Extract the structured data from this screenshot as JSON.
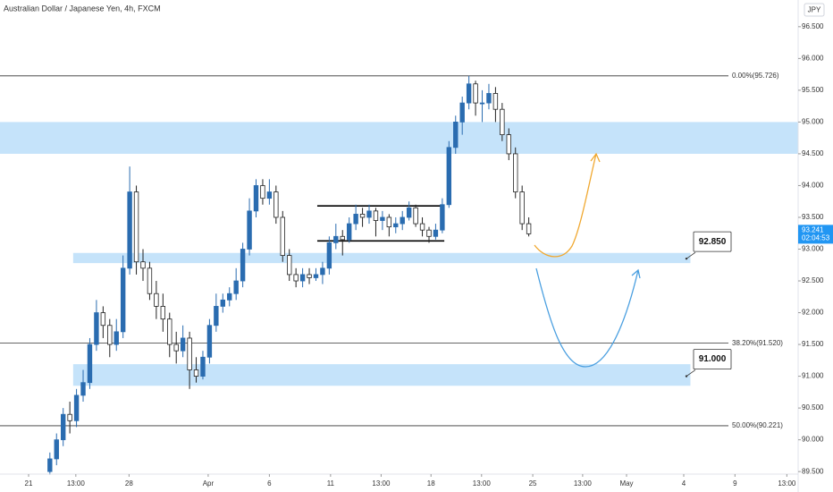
{
  "chart_data": {
    "type": "candlestick",
    "title": "Australian Dollar / Japanese Yen, 4h, FXCM",
    "currency": "JPY",
    "xlim": [
      0,
      120
    ],
    "ylim": [
      89.46,
      96.92
    ],
    "xticks": [
      {
        "value": 4.3,
        "label": "21"
      },
      {
        "value": 11.4,
        "label": "13:00"
      },
      {
        "value": 19.4,
        "label": "28"
      },
      {
        "value": 31.3,
        "label": "Apr"
      },
      {
        "value": 40.5,
        "label": "6"
      },
      {
        "value": 49.7,
        "label": "11"
      },
      {
        "value": 57.3,
        "label": "13:00"
      },
      {
        "value": 64.8,
        "label": "18"
      },
      {
        "value": 72.4,
        "label": "13:00"
      },
      {
        "value": 80.1,
        "label": "25"
      },
      {
        "value": 87.6,
        "label": "13:00"
      },
      {
        "value": 94.2,
        "label": "May"
      },
      {
        "value": 102.8,
        "label": "4"
      },
      {
        "value": 110.5,
        "label": "9"
      },
      {
        "value": 118.3,
        "label": "13:00"
      }
    ],
    "yticks": [
      {
        "value": 96.5,
        "label": "96.500"
      },
      {
        "value": 96.0,
        "label": "96.000"
      },
      {
        "value": 95.5,
        "label": "95.500"
      },
      {
        "value": 95.0,
        "label": "95.000"
      },
      {
        "value": 94.5,
        "label": "94.500"
      },
      {
        "value": 94.0,
        "label": "94.000"
      },
      {
        "value": 93.5,
        "label": "93.500"
      },
      {
        "value": 93.0,
        "label": "93.000"
      },
      {
        "value": 92.5,
        "label": "92.500"
      },
      {
        "value": 92.0,
        "label": "92.000"
      },
      {
        "value": 91.5,
        "label": "91.500"
      },
      {
        "value": 91.0,
        "label": "91.000"
      },
      {
        "value": 90.5,
        "label": "90.500"
      },
      {
        "value": 90.0,
        "label": "90.000"
      },
      {
        "value": 89.5,
        "label": "89.500"
      }
    ],
    "up_color": "#2a6cb0",
    "down_color": "#ffffff",
    "zone_color": "#c5e3fa",
    "x": [
      7.5,
      8.5,
      9.5,
      10.5,
      11.5,
      12.5,
      13.5,
      14.5,
      15.5,
      16.5,
      17.5,
      18.5,
      19.5,
      20.5,
      21.5,
      22.5,
      23.5,
      24.5,
      25.5,
      26.5,
      27.5,
      28.5,
      29.5,
      30.5,
      31.5,
      32.5,
      33.5,
      34.5,
      35.5,
      36.5,
      37.5,
      38.5,
      39.5,
      40.5,
      41.5,
      42.5,
      43.5,
      44.5,
      45.5,
      46.5,
      47.5,
      48.5,
      49.5,
      50.5,
      51.5,
      52.5,
      53.5,
      54.5,
      55.5,
      56.5,
      57.5,
      58.5,
      59.5,
      60.5,
      61.5,
      62.5,
      63.5,
      64.5,
      65.5,
      66.5,
      67.5,
      68.5,
      69.5,
      70.5,
      71.5,
      72.5,
      73.5,
      74.5,
      75.5,
      76.5,
      77.5,
      78.5,
      79.5
    ],
    "ohlc": [
      [
        89.5,
        89.8,
        89.45,
        89.7
      ],
      [
        89.7,
        90.1,
        89.6,
        90.0
      ],
      [
        90.0,
        90.5,
        89.9,
        90.4
      ],
      [
        90.4,
        90.6,
        90.1,
        90.3
      ],
      [
        90.3,
        90.8,
        90.2,
        90.7
      ],
      [
        90.7,
        91.1,
        90.6,
        90.9
      ],
      [
        90.9,
        91.6,
        90.8,
        91.5
      ],
      [
        91.5,
        92.2,
        91.4,
        92.0
      ],
      [
        92.0,
        92.1,
        91.6,
        91.8
      ],
      [
        91.8,
        91.9,
        91.3,
        91.5
      ],
      [
        91.5,
        91.9,
        91.4,
        91.7
      ],
      [
        91.7,
        92.9,
        91.6,
        92.7
      ],
      [
        92.7,
        94.3,
        92.6,
        93.9
      ],
      [
        93.9,
        94.0,
        92.6,
        92.8
      ],
      [
        92.8,
        93.0,
        92.5,
        92.7
      ],
      [
        92.7,
        92.8,
        92.2,
        92.3
      ],
      [
        92.3,
        92.5,
        91.9,
        92.1
      ],
      [
        92.1,
        92.3,
        91.7,
        91.9
      ],
      [
        91.9,
        92.0,
        91.3,
        91.5
      ],
      [
        91.5,
        91.7,
        91.2,
        91.4
      ],
      [
        91.4,
        91.8,
        91.3,
        91.6
      ],
      [
        91.6,
        91.7,
        90.8,
        91.1
      ],
      [
        91.1,
        91.3,
        90.9,
        91.0
      ],
      [
        91.0,
        91.4,
        90.95,
        91.3
      ],
      [
        91.3,
        91.9,
        91.2,
        91.8
      ],
      [
        91.8,
        92.3,
        91.7,
        92.1
      ],
      [
        92.1,
        92.3,
        92.0,
        92.2
      ],
      [
        92.2,
        92.4,
        92.1,
        92.3
      ],
      [
        92.3,
        92.7,
        92.2,
        92.5
      ],
      [
        92.5,
        93.1,
        92.4,
        93.0
      ],
      [
        93.0,
        93.8,
        92.9,
        93.6
      ],
      [
        93.6,
        94.1,
        93.5,
        94.0
      ],
      [
        94.0,
        94.1,
        93.7,
        93.8
      ],
      [
        93.8,
        94.1,
        93.7,
        93.9
      ],
      [
        93.9,
        94.0,
        93.4,
        93.5
      ],
      [
        93.5,
        93.6,
        92.8,
        92.9
      ],
      [
        92.9,
        93.0,
        92.5,
        92.6
      ],
      [
        92.6,
        92.7,
        92.4,
        92.5
      ],
      [
        92.5,
        92.7,
        92.4,
        92.6
      ],
      [
        92.6,
        92.7,
        92.45,
        92.55
      ],
      [
        92.55,
        92.7,
        92.5,
        92.6
      ],
      [
        92.6,
        92.8,
        92.45,
        92.7
      ],
      [
        92.7,
        93.2,
        92.6,
        93.1
      ],
      [
        93.1,
        93.4,
        93.0,
        93.2
      ],
      [
        93.2,
        93.3,
        92.9,
        93.15
      ],
      [
        93.15,
        93.5,
        93.1,
        93.4
      ],
      [
        93.4,
        93.7,
        93.3,
        93.55
      ],
      [
        93.55,
        93.65,
        93.35,
        93.5
      ],
      [
        93.5,
        93.7,
        93.4,
        93.6
      ],
      [
        93.6,
        93.65,
        93.2,
        93.45
      ],
      [
        93.45,
        93.6,
        93.3,
        93.5
      ],
      [
        93.5,
        93.55,
        93.2,
        93.35
      ],
      [
        93.35,
        93.5,
        93.25,
        93.4
      ],
      [
        93.4,
        93.6,
        93.3,
        93.5
      ],
      [
        93.5,
        93.75,
        93.45,
        93.65
      ],
      [
        93.65,
        93.7,
        93.35,
        93.4
      ],
      [
        93.4,
        93.5,
        93.2,
        93.3
      ],
      [
        93.3,
        93.35,
        93.1,
        93.2
      ],
      [
        93.2,
        93.4,
        93.15,
        93.3
      ],
      [
        93.3,
        93.8,
        93.25,
        93.7
      ],
      [
        93.7,
        94.7,
        93.65,
        94.6
      ],
      [
        94.6,
        95.1,
        94.5,
        95.0
      ],
      [
        95.0,
        95.4,
        94.8,
        95.3
      ],
      [
        95.3,
        95.726,
        95.2,
        95.6
      ],
      [
        95.6,
        95.65,
        95.1,
        95.3
      ],
      [
        95.3,
        95.5,
        95.0,
        95.3
      ],
      [
        95.3,
        95.6,
        95.2,
        95.45
      ],
      [
        95.45,
        95.55,
        95.0,
        95.2
      ],
      [
        95.2,
        95.3,
        94.7,
        94.8
      ],
      [
        94.8,
        94.9,
        94.4,
        94.5
      ],
      [
        94.5,
        94.6,
        93.8,
        93.9
      ],
      [
        93.9,
        94.0,
        93.3,
        93.4
      ],
      [
        93.4,
        93.5,
        93.2,
        93.241
      ]
    ],
    "levels": [
      {
        "value": 95.726,
        "label": "0.00%(95.726)"
      },
      {
        "value": 91.52,
        "label": "38.20%(91.520)"
      },
      {
        "value": 90.221,
        "label": "50.00%(90.221)"
      }
    ],
    "zones": [
      {
        "from": 94.5,
        "to": 95.0,
        "x": [
          0,
          120
        ]
      },
      {
        "from": 92.78,
        "to": 92.94,
        "x": [
          11,
          103.8
        ]
      },
      {
        "from": 90.85,
        "to": 91.19,
        "x": [
          11,
          103.8
        ]
      }
    ],
    "range_lines": {
      "x": [
        47.7,
        66.8
      ],
      "values": [
        93.68,
        93.13
      ]
    },
    "callouts": [
      {
        "value": 92.85,
        "label": "92.850"
      },
      {
        "value": 91.0,
        "label": "91.000"
      }
    ],
    "last_price": 93.241,
    "countdown": "02:04:53"
  }
}
